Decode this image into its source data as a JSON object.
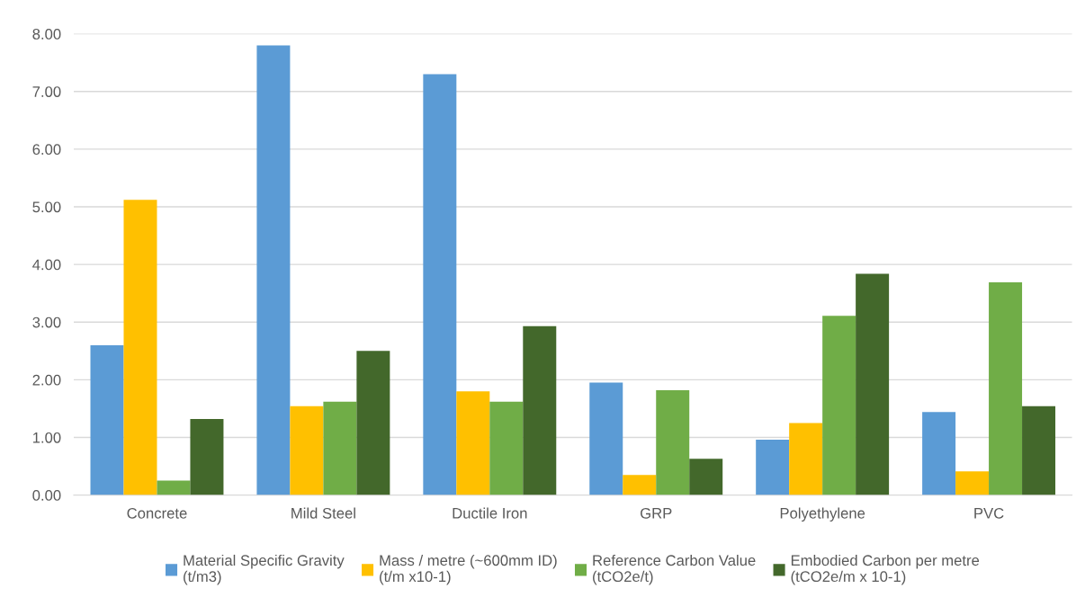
{
  "chart_data": {
    "type": "bar",
    "categories": [
      "Concrete",
      "Mild Steel",
      "Ductile Iron",
      "GRP",
      "Polyethylene",
      "PVC"
    ],
    "series": [
      {
        "name": "Material Specific Gravity\n(t/m3)",
        "color": "#5b9bd5",
        "values": [
          2.6,
          7.8,
          7.3,
          1.95,
          0.96,
          1.44
        ]
      },
      {
        "name": "Mass / metre (~600mm ID)\n(t/m x10-1)",
        "color": "#ffc000",
        "values": [
          5.12,
          1.54,
          1.8,
          0.35,
          1.25,
          0.41
        ]
      },
      {
        "name": "Reference Carbon Value\n(tCO2e/t)",
        "color": "#70ad47",
        "values": [
          0.25,
          1.62,
          1.62,
          1.82,
          3.11,
          3.69
        ]
      },
      {
        "name": "Embodied Carbon per metre\n(tCO2e/m x 10-1)",
        "color": "#43682b",
        "values": [
          1.32,
          2.5,
          2.93,
          0.63,
          3.84,
          1.54
        ]
      }
    ],
    "ylim": [
      0,
      8
    ],
    "yticks": [
      {
        "value": 0,
        "label": "0.00"
      },
      {
        "value": 1,
        "label": "1.00"
      },
      {
        "value": 2,
        "label": "2.00"
      },
      {
        "value": 3,
        "label": "3.00"
      },
      {
        "value": 4,
        "label": "4.00"
      },
      {
        "value": 5,
        "label": "5.00"
      },
      {
        "value": 6,
        "label": "6.00"
      },
      {
        "value": 7,
        "label": "7.00"
      },
      {
        "value": 8,
        "label": "8.00"
      }
    ],
    "grid": "y",
    "legend": "bottom"
  }
}
